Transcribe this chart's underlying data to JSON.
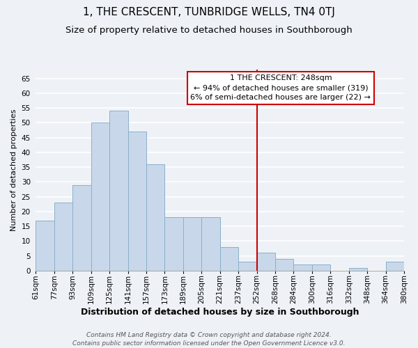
{
  "title": "1, THE CRESCENT, TUNBRIDGE WELLS, TN4 0TJ",
  "subtitle": "Size of property relative to detached houses in Southborough",
  "xlabel": "Distribution of detached houses by size in Southborough",
  "ylabel": "Number of detached properties",
  "bar_labels": [
    "61sqm",
    "77sqm",
    "93sqm",
    "109sqm",
    "125sqm",
    "141sqm",
    "157sqm",
    "173sqm",
    "189sqm",
    "205sqm",
    "221sqm",
    "237sqm",
    "252sqm",
    "268sqm",
    "284sqm",
    "300sqm",
    "316sqm",
    "332sqm",
    "348sqm",
    "364sqm",
    "380sqm"
  ],
  "bar_heights": [
    17,
    23,
    29,
    50,
    54,
    47,
    36,
    18,
    18,
    18,
    8,
    3,
    6,
    4,
    2,
    2,
    0,
    1,
    0,
    3
  ],
  "bar_color": "#c8d8ea",
  "bar_edge_color": "#8aafc8",
  "vline_x_label_idx": 12,
  "vline_color": "#cc0000",
  "ylim": [
    0,
    68
  ],
  "yticks": [
    0,
    5,
    10,
    15,
    20,
    25,
    30,
    35,
    40,
    45,
    50,
    55,
    60,
    65
  ],
  "annotation_title": "1 THE CRESCENT: 248sqm",
  "annotation_line1": "← 94% of detached houses are smaller (319)",
  "annotation_line2": "6% of semi-detached houses are larger (22) →",
  "annotation_box_color": "#ffffff",
  "annotation_box_edge": "#cc0000",
  "footer_line1": "Contains HM Land Registry data © Crown copyright and database right 2024.",
  "footer_line2": "Contains public sector information licensed under the Open Government Licence v3.0.",
  "background_color": "#eef2f7",
  "grid_color": "#ffffff",
  "title_fontsize": 11,
  "subtitle_fontsize": 9.5,
  "xlabel_fontsize": 9,
  "ylabel_fontsize": 8,
  "tick_fontsize": 7.5,
  "footer_fontsize": 6.5,
  "annotation_fontsize": 8
}
